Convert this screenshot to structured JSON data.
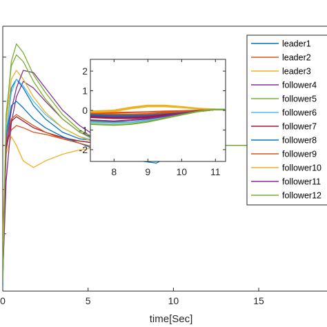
{
  "chart_data": [
    {
      "type": "line",
      "role": "main",
      "title": "",
      "xlabel": "time[Sec]",
      "ylabel": "",
      "xlim": [
        0,
        19
      ],
      "ylim": [
        -3.3,
        2.7
      ],
      "x_ticks": [
        0,
        5,
        10,
        15
      ],
      "grid": false,
      "legend_placement": "right",
      "series": [
        {
          "name": "leader1",
          "color": "#0072BD",
          "x": [
            0,
            0.2,
            0.5,
            0.8,
            1.2,
            1.8,
            2.5,
            3.5,
            4.5,
            5.5,
            7,
            9,
            11,
            13,
            15,
            17,
            19
          ],
          "y": [
            -3.2,
            0.2,
            1.3,
            1.5,
            1.3,
            0.9,
            0.6,
            0.3,
            0.15,
            0.1,
            0.02,
            0,
            0,
            0,
            0,
            0,
            0
          ]
        },
        {
          "name": "leader2",
          "color": "#D95319",
          "x": [
            0,
            0.2,
            0.5,
            0.8,
            1.2,
            1.8,
            2.5,
            3.5,
            4.5,
            5.5,
            7,
            9,
            11,
            13,
            15,
            17,
            19
          ],
          "y": [
            -2.8,
            0.0,
            0.35,
            0.45,
            0.4,
            0.3,
            0.25,
            0.15,
            0.1,
            0.05,
            0.02,
            0,
            0,
            0,
            0,
            0,
            0
          ]
        },
        {
          "name": "leader3",
          "color": "#EDB120",
          "x": [
            0,
            0.2,
            0.5,
            0.8,
            1.2,
            1.8,
            2.5,
            3.5,
            4.5,
            5.5,
            7,
            9,
            11,
            13,
            15,
            17,
            19
          ],
          "y": [
            -2.5,
            -0.2,
            0.2,
            0.0,
            -0.35,
            -0.5,
            -0.35,
            -0.2,
            -0.1,
            -0.05,
            -0.05,
            0.1,
            0,
            0,
            0,
            0,
            0
          ]
        },
        {
          "name": "follower4",
          "color": "#7E2F8E",
          "x": [
            0,
            0.2,
            0.5,
            0.8,
            1.2,
            1.8,
            2.5,
            3.5,
            4.5,
            5.5,
            7,
            9,
            11,
            13,
            15,
            17,
            19
          ],
          "y": [
            -3.0,
            -0.8,
            0.5,
            1.1,
            1.45,
            1.3,
            1.0,
            0.6,
            0.3,
            0.15,
            0.05,
            0,
            0,
            0,
            0,
            0,
            0
          ]
        },
        {
          "name": "follower5",
          "color": "#77AC30",
          "x": [
            0,
            0.2,
            0.5,
            0.8,
            1.2,
            1.8,
            2.5,
            3.5,
            4.5,
            5.5,
            7,
            9,
            11,
            13,
            15,
            17,
            19
          ],
          "y": [
            -3.1,
            0.6,
            1.9,
            2.3,
            2.1,
            1.6,
            1.2,
            0.7,
            0.35,
            0.15,
            0.05,
            0,
            0,
            0,
            0,
            0,
            0
          ]
        },
        {
          "name": "follower6",
          "color": "#4DBEEE",
          "x": [
            0,
            0.2,
            0.5,
            0.8,
            1.2,
            1.8,
            2.5,
            3.5,
            4.5,
            5.5,
            7,
            9,
            11,
            13,
            15,
            17,
            19
          ],
          "y": [
            -2.9,
            0.3,
            1.2,
            1.5,
            1.35,
            1.0,
            0.7,
            0.4,
            0.2,
            0.1,
            0.03,
            0,
            0,
            0,
            0,
            0,
            0
          ]
        },
        {
          "name": "follower7",
          "color": "#A2142F",
          "x": [
            0,
            0.2,
            0.5,
            0.8,
            1.2,
            1.8,
            2.5,
            3.5,
            4.5,
            5.5,
            7,
            9,
            11,
            13,
            15,
            17,
            19
          ],
          "y": [
            -2.6,
            -0.1,
            0.55,
            0.65,
            0.55,
            0.4,
            0.3,
            0.18,
            0.1,
            0.05,
            0.02,
            0,
            0,
            0,
            0,
            0,
            0
          ]
        },
        {
          "name": "follower8",
          "color": "#0072BD",
          "x": [
            0,
            0.2,
            0.5,
            0.8,
            1.2,
            1.8,
            2.5,
            3.5,
            4.5,
            5.5,
            7,
            9,
            11,
            13,
            15,
            17,
            19
          ],
          "y": [
            -2.7,
            0.2,
            0.9,
            1.0,
            0.85,
            0.6,
            0.4,
            0.2,
            0.05,
            -0.1,
            -0.3,
            -0.4,
            0,
            0,
            0,
            0,
            0
          ]
        },
        {
          "name": "follower9",
          "color": "#D95319",
          "x": [
            0,
            0.2,
            0.5,
            0.8,
            1.2,
            1.8,
            2.5,
            3.5,
            4.5,
            5.5,
            7,
            9,
            11,
            13,
            15,
            17,
            19
          ],
          "y": [
            -2.4,
            0.1,
            0.6,
            0.7,
            0.6,
            0.45,
            0.3,
            0.15,
            0.05,
            -0.05,
            -0.2,
            -0.3,
            0,
            0,
            0,
            0,
            0
          ]
        },
        {
          "name": "follower10",
          "color": "#EDB120",
          "x": [
            0,
            0.2,
            0.5,
            0.8,
            1.2,
            1.8,
            2.5,
            3.5,
            4.5,
            5.5,
            7,
            9,
            11,
            13,
            15,
            17,
            19
          ],
          "y": [
            -2.2,
            0.5,
            1.5,
            1.7,
            1.5,
            1.1,
            0.75,
            0.4,
            0.2,
            0.05,
            0.05,
            0.15,
            0,
            0,
            0,
            0,
            0
          ]
        },
        {
          "name": "follower11",
          "color": "#7E2F8E",
          "x": [
            0,
            0.2,
            0.5,
            0.8,
            1.2,
            1.8,
            2.5,
            3.5,
            4.5,
            5.5,
            7,
            9,
            11,
            13,
            15,
            17,
            19
          ],
          "y": [
            -2.8,
            0.0,
            0.8,
            1.3,
            1.7,
            1.65,
            1.3,
            0.8,
            0.45,
            0.2,
            0.05,
            0,
            0,
            0,
            0,
            0,
            0
          ]
        },
        {
          "name": "follower12",
          "color": "#77AC30",
          "x": [
            0,
            0.2,
            0.5,
            0.8,
            1.2,
            1.8,
            2.5,
            3.5,
            4.5,
            5.5,
            7,
            9,
            11,
            13,
            15,
            17,
            19
          ],
          "y": [
            -3.0,
            0.7,
            1.8,
            2.05,
            1.9,
            1.45,
            1.05,
            0.6,
            0.3,
            0.1,
            -0.1,
            -0.2,
            0,
            0,
            0,
            0,
            0
          ]
        }
      ]
    },
    {
      "type": "line",
      "role": "inset",
      "title": "",
      "xlabel": "",
      "ylabel": "",
      "xlim": [
        7.3,
        11.3
      ],
      "ylim": [
        -2.6,
        2.6
      ],
      "x_ticks": [
        8,
        9,
        10,
        11
      ],
      "y_ticks": [
        -2,
        -1,
        0,
        1,
        2
      ],
      "grid": false,
      "series": [
        {
          "name": "leader1",
          "color": "#0072BD",
          "x": [
            7.3,
            8,
            8.5,
            9,
            9.5,
            10,
            10.5,
            11,
            11.3
          ],
          "y": [
            -0.25,
            -0.3,
            -0.3,
            -0.25,
            -0.2,
            -0.1,
            -0.03,
            0.05,
            0.05
          ]
        },
        {
          "name": "leader2",
          "color": "#D95319",
          "x": [
            7.3,
            8,
            8.5,
            9,
            9.5,
            10,
            10.5,
            11,
            11.3
          ],
          "y": [
            -0.1,
            -0.12,
            -0.1,
            -0.08,
            -0.05,
            -0.03,
            0.0,
            0.05,
            0.05
          ]
        },
        {
          "name": "leader3",
          "color": "#EDB120",
          "x": [
            7.3,
            8,
            8.5,
            9,
            9.5,
            10,
            10.5,
            11,
            11.3
          ],
          "y": [
            -0.1,
            -0.05,
            0.1,
            0.2,
            0.2,
            0.15,
            0.08,
            0.05,
            0.05
          ]
        },
        {
          "name": "follower4",
          "color": "#7E2F8E",
          "x": [
            7.3,
            8,
            8.5,
            9,
            9.5,
            10,
            10.5,
            11,
            11.3
          ],
          "y": [
            -0.3,
            -0.35,
            -0.35,
            -0.3,
            -0.22,
            -0.12,
            -0.03,
            0.05,
            0.05
          ]
        },
        {
          "name": "follower5",
          "color": "#77AC30",
          "x": [
            7.3,
            8,
            8.5,
            9,
            9.5,
            10,
            10.5,
            11,
            11.3
          ],
          "y": [
            -0.55,
            -0.6,
            -0.6,
            -0.5,
            -0.38,
            -0.2,
            -0.05,
            0.05,
            0.05
          ]
        },
        {
          "name": "follower6",
          "color": "#4DBEEE",
          "x": [
            7.3,
            8,
            8.5,
            9,
            9.5,
            10,
            10.5,
            11,
            11.3
          ],
          "y": [
            -0.6,
            -0.65,
            -0.6,
            -0.5,
            -0.35,
            -0.2,
            -0.05,
            0.05,
            0.05
          ]
        },
        {
          "name": "follower7",
          "color": "#A2142F",
          "x": [
            7.3,
            8,
            8.5,
            9,
            9.5,
            10,
            10.5,
            11,
            11.3
          ],
          "y": [
            -0.35,
            -0.4,
            -0.4,
            -0.35,
            -0.25,
            -0.12,
            -0.03,
            0.05,
            0.05
          ]
        },
        {
          "name": "follower8",
          "color": "#0072BD",
          "x": [
            7.3,
            8,
            8.5,
            9,
            9.5,
            10,
            10.5,
            11,
            11.3
          ],
          "y": [
            -0.2,
            -0.25,
            -0.25,
            -0.2,
            -0.15,
            -0.08,
            -0.02,
            0.05,
            0.05
          ]
        },
        {
          "name": "follower9",
          "color": "#D95319",
          "x": [
            7.3,
            8,
            8.5,
            9,
            9.5,
            10,
            10.5,
            11,
            11.3
          ],
          "y": [
            -0.15,
            -0.2,
            -0.2,
            -0.18,
            -0.12,
            -0.06,
            0.0,
            0.05,
            0.05
          ]
        },
        {
          "name": "follower10",
          "color": "#EDB120",
          "x": [
            7.3,
            8,
            8.5,
            9,
            9.5,
            10,
            10.5,
            11,
            11.3
          ],
          "y": [
            -0.05,
            0.0,
            0.15,
            0.25,
            0.25,
            0.18,
            0.1,
            0.05,
            0.05
          ]
        },
        {
          "name": "follower11",
          "color": "#7E2F8E",
          "x": [
            7.3,
            8,
            8.5,
            9,
            9.5,
            10,
            10.5,
            11,
            11.3
          ],
          "y": [
            -0.5,
            -0.55,
            -0.5,
            -0.42,
            -0.3,
            -0.15,
            -0.04,
            0.05,
            0.05
          ]
        },
        {
          "name": "follower12",
          "color": "#77AC30",
          "x": [
            7.3,
            8,
            8.5,
            9,
            9.5,
            10,
            10.5,
            11,
            11.3
          ],
          "y": [
            -0.7,
            -0.75,
            -0.7,
            -0.58,
            -0.4,
            -0.22,
            -0.05,
            0.05,
            0.05
          ]
        }
      ]
    }
  ]
}
